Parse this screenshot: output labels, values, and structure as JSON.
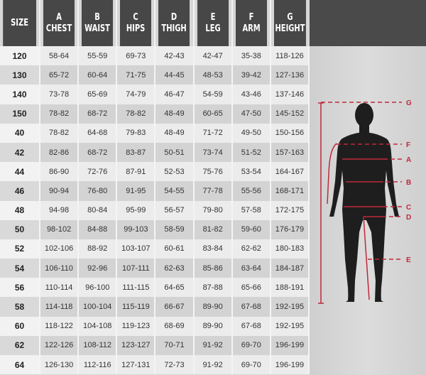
{
  "headers": [
    {
      "letter": "",
      "label": "SIZE"
    },
    {
      "letter": "A",
      "label": "CHEST"
    },
    {
      "letter": "B",
      "label": "WAIST"
    },
    {
      "letter": "C",
      "label": "HIPS"
    },
    {
      "letter": "D",
      "label": "THIGH"
    },
    {
      "letter": "E",
      "label": "LEG"
    },
    {
      "letter": "F",
      "label": "ARM"
    },
    {
      "letter": "G",
      "label": "HEIGHT"
    }
  ],
  "rows": [
    [
      "120",
      "58-64",
      "55-59",
      "69-73",
      "42-43",
      "42-47",
      "35-38",
      "118-126"
    ],
    [
      "130",
      "65-72",
      "60-64",
      "71-75",
      "44-45",
      "48-53",
      "39-42",
      "127-136"
    ],
    [
      "140",
      "73-78",
      "65-69",
      "74-79",
      "46-47",
      "54-59",
      "43-46",
      "137-146"
    ],
    [
      "150",
      "78-82",
      "68-72",
      "78-82",
      "48-49",
      "60-65",
      "47-50",
      "145-152"
    ],
    [
      "40",
      "78-82",
      "64-68",
      "79-83",
      "48-49",
      "71-72",
      "49-50",
      "150-156"
    ],
    [
      "42",
      "82-86",
      "68-72",
      "83-87",
      "50-51",
      "73-74",
      "51-52",
      "157-163"
    ],
    [
      "44",
      "86-90",
      "72-76",
      "87-91",
      "52-53",
      "75-76",
      "53-54",
      "164-167"
    ],
    [
      "46",
      "90-94",
      "76-80",
      "91-95",
      "54-55",
      "77-78",
      "55-56",
      "168-171"
    ],
    [
      "48",
      "94-98",
      "80-84",
      "95-99",
      "56-57",
      "79-80",
      "57-58",
      "172-175"
    ],
    [
      "50",
      "98-102",
      "84-88",
      "99-103",
      "58-59",
      "81-82",
      "59-60",
      "176-179"
    ],
    [
      "52",
      "102-106",
      "88-92",
      "103-107",
      "60-61",
      "83-84",
      "62-62",
      "180-183"
    ],
    [
      "54",
      "106-110",
      "92-96",
      "107-111",
      "62-63",
      "85-86",
      "63-64",
      "184-187"
    ],
    [
      "56",
      "110-114",
      "96-100",
      "111-115",
      "64-65",
      "87-88",
      "65-66",
      "188-191"
    ],
    [
      "58",
      "114-118",
      "100-104",
      "115-119",
      "66-67",
      "89-90",
      "67-68",
      "192-195"
    ],
    [
      "60",
      "118-122",
      "104-108",
      "119-123",
      "68-69",
      "89-90",
      "67-68",
      "192-195"
    ],
    [
      "62",
      "122-126",
      "108-112",
      "123-127",
      "70-71",
      "91-92",
      "69-70",
      "196-199"
    ],
    [
      "64",
      "126-130",
      "112-116",
      "127-131",
      "72-73",
      "91-92",
      "69-70",
      "196-199"
    ]
  ],
  "figure": {
    "labels": {
      "G": "G",
      "F": "F",
      "A": "A",
      "B": "B",
      "C": "C",
      "D": "D",
      "E": "E"
    },
    "line_color": "#c0283a",
    "silhouette_color": "#1e1e1e"
  }
}
